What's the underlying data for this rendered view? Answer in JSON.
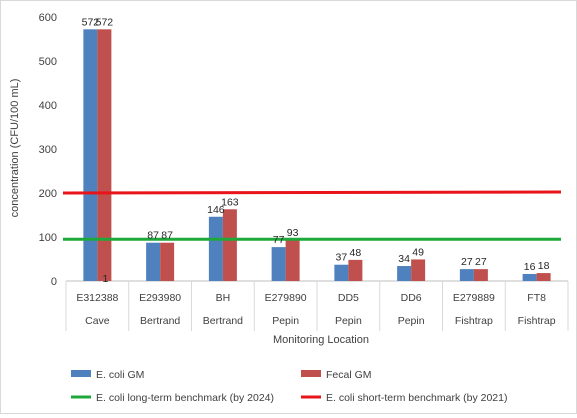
{
  "chart_data": {
    "type": "bar",
    "title": "",
    "xlabel": "Monitoring Location",
    "ylabel": "concentration (CFU/100 mL)",
    "ylim": [
      0,
      600
    ],
    "yticks": [
      0,
      100,
      200,
      300,
      400,
      500,
      600
    ],
    "grid": false,
    "legend_position": "bottom",
    "categories": [
      {
        "site": "E312388",
        "group": "Cave"
      },
      {
        "site": "E293980",
        "group": "Bertrand"
      },
      {
        "site": "BH",
        "group": "Bertrand"
      },
      {
        "site": "E279890",
        "group": "Pepin"
      },
      {
        "site": "DD5",
        "group": "Pepin"
      },
      {
        "site": "DD6",
        "group": "Pepin"
      },
      {
        "site": "E279889",
        "group": "Fishtrap"
      },
      {
        "site": "FT8",
        "group": "Fishtrap"
      }
    ],
    "series": [
      {
        "name": "E. coli GM",
        "color": "#4e81bd",
        "values": [
          572,
          87,
          146,
          77,
          37,
          34,
          27,
          16
        ]
      },
      {
        "name": "Fecal GM",
        "color": "#c0504d",
        "values": [
          572,
          87,
          163,
          93,
          48,
          49,
          27,
          18
        ]
      }
    ],
    "reference_lines": [
      {
        "name": "E. coli long-term benchmark (by 2024)",
        "color": "#1fa83a",
        "value": 95
      },
      {
        "name": "E. coli short-term benchmark (by 2021)",
        "color": "#e8141a",
        "value": 200
      }
    ],
    "annotations": [
      {
        "text": "1",
        "category_index": 0,
        "y": 0
      }
    ]
  }
}
